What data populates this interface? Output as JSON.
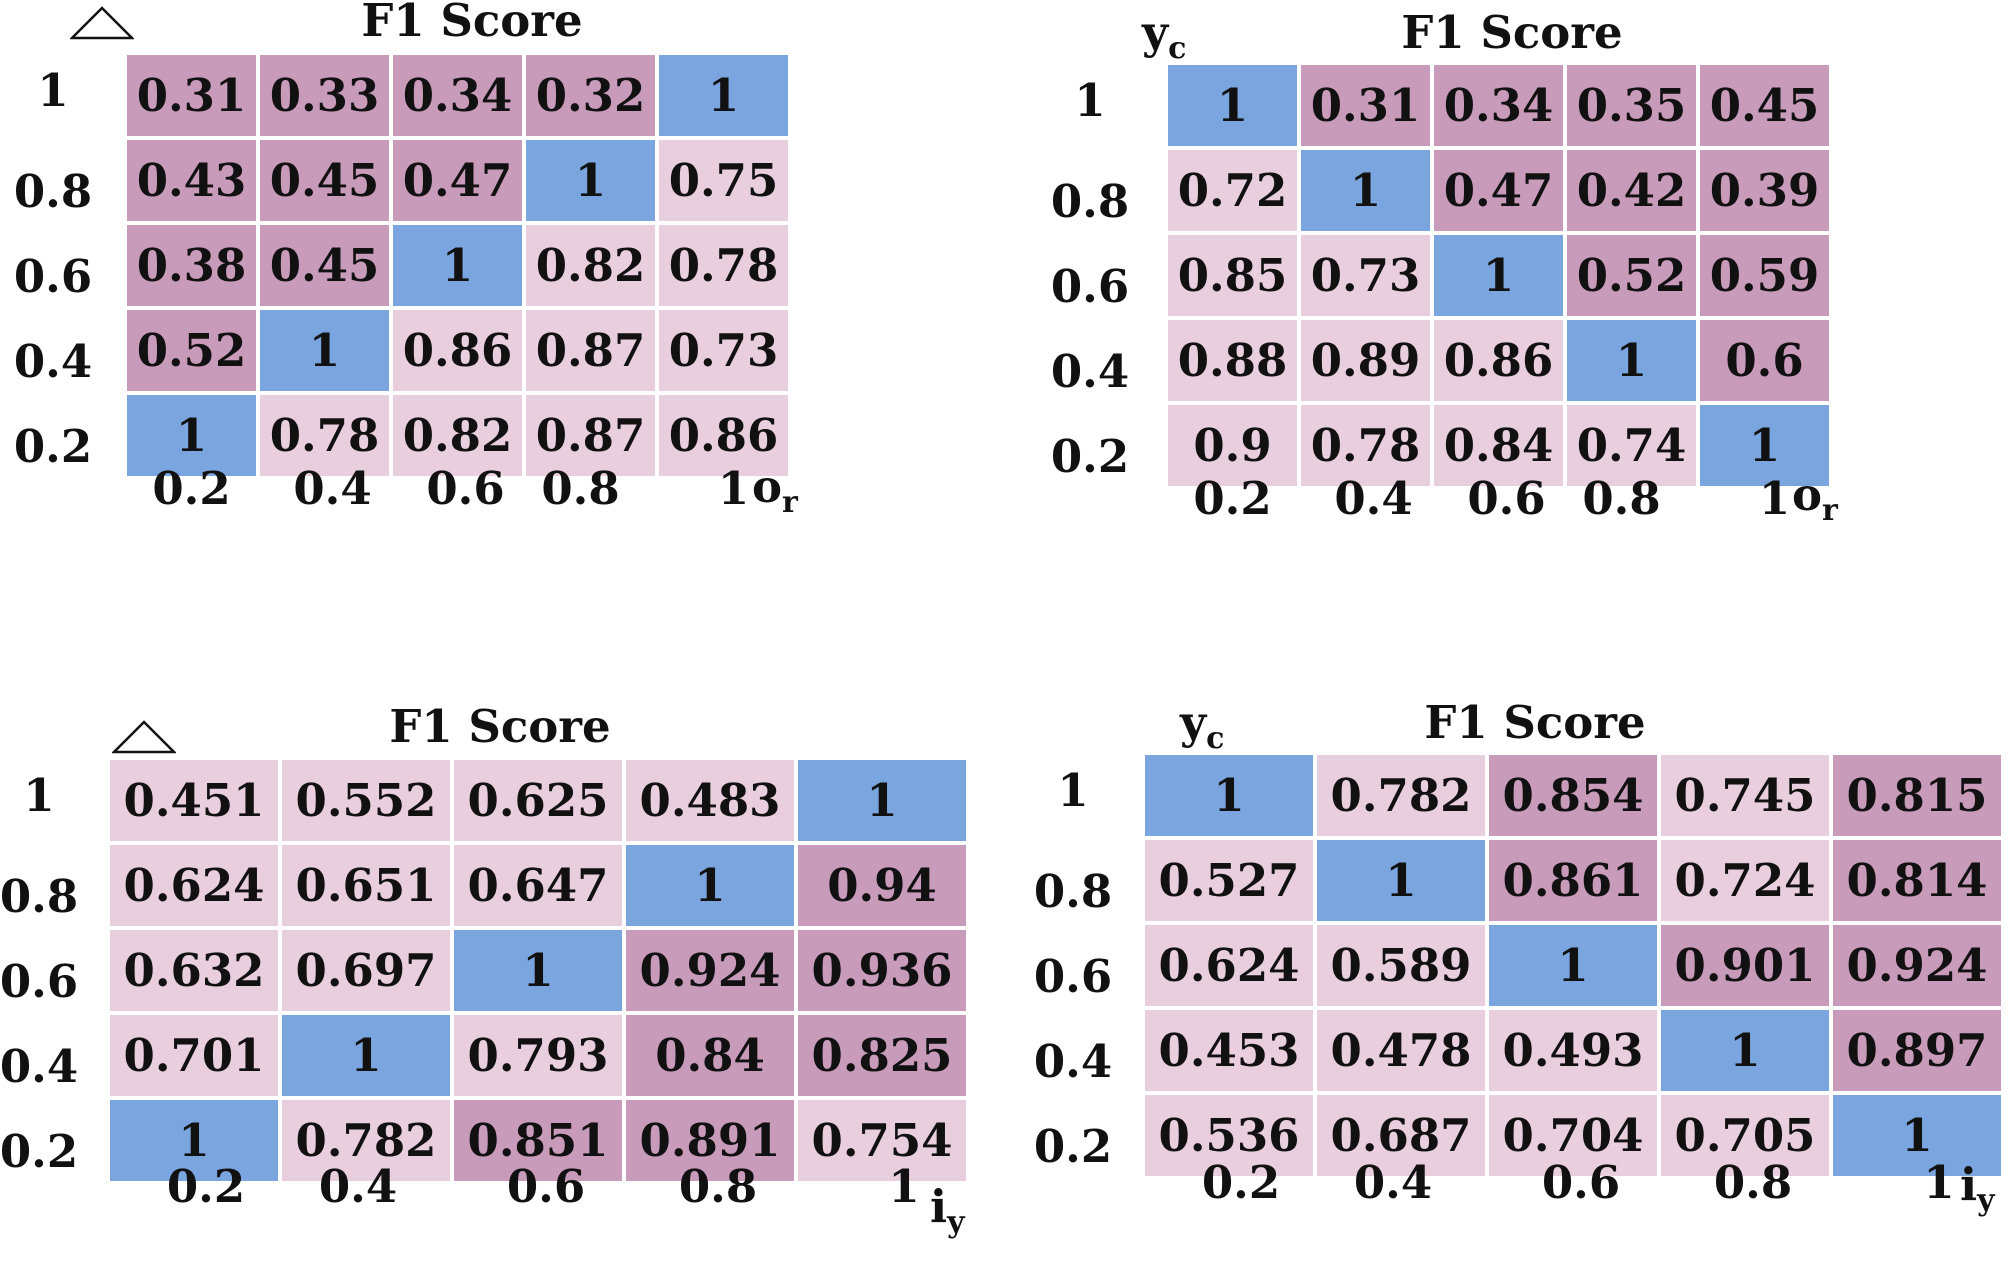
{
  "colors": {
    "high": "#c99bbb",
    "low": "#e9cedd",
    "diag": "#7ba5df",
    "threshold": 0.8
  },
  "chart_data": [
    {
      "type": "heatmap",
      "title": "F1 Score",
      "corner_icon": "triangle-icon",
      "x_name": {
        "base": "o",
        "sub": "r"
      },
      "x_ticks": [
        "0.2",
        "0.4",
        "0.6",
        "0.8",
        "1"
      ],
      "y_ticks": [
        "1",
        "0.8",
        "0.6",
        "0.4",
        "0.2"
      ],
      "values": [
        [
          "0.31",
          "0.33",
          "0.34",
          "0.32",
          "1"
        ],
        [
          "0.43",
          "0.45",
          "0.47",
          "1",
          "0.75"
        ],
        [
          "0.38",
          "0.45",
          "1",
          "0.82",
          "0.78"
        ],
        [
          "0.52",
          "1",
          "0.86",
          "0.87",
          "0.73"
        ],
        [
          "1",
          "0.78",
          "0.82",
          "0.87",
          "0.86"
        ]
      ]
    },
    {
      "type": "heatmap",
      "title": "F1 Score",
      "y_name": {
        "base": "y",
        "sub": "c"
      },
      "x_name": {
        "base": "o",
        "sub": "r"
      },
      "x_ticks": [
        "0.2",
        "0.4",
        "0.6",
        "0.8",
        "1"
      ],
      "y_ticks": [
        "1",
        "0.8",
        "0.6",
        "0.4",
        "0.2"
      ],
      "values": [
        [
          "1",
          "0.31",
          "0.34",
          "0.35",
          "0.45"
        ],
        [
          "0.72",
          "1",
          "0.47",
          "0.42",
          "0.39"
        ],
        [
          "0.85",
          "0.73",
          "1",
          "0.52",
          "0.59"
        ],
        [
          "0.88",
          "0.89",
          "0.86",
          "1",
          "0.6"
        ],
        [
          "0.9",
          "0.78",
          "0.84",
          "0.74",
          "1"
        ]
      ]
    },
    {
      "type": "heatmap",
      "title": "F1 Score",
      "corner_icon": "triangle-icon",
      "x_name": {
        "base": "i",
        "sub": "y"
      },
      "x_ticks": [
        "0.2",
        "0.4",
        "0.6",
        "0.8",
        "1"
      ],
      "y_ticks": [
        "1",
        "0.8",
        "0.6",
        "0.4",
        "0.2"
      ],
      "values": [
        [
          "0.451",
          "0.552",
          "0.625",
          "0.483",
          "1"
        ],
        [
          "0.624",
          "0.651",
          "0.647",
          "1",
          "0.94"
        ],
        [
          "0.632",
          "0.697",
          "1",
          "0.924",
          "0.936"
        ],
        [
          "0.701",
          "1",
          "0.793",
          "0.84",
          "0.825"
        ],
        [
          "1",
          "0.782",
          "0.851",
          "0.891",
          "0.754"
        ]
      ]
    },
    {
      "type": "heatmap",
      "title": "F1 Score",
      "y_name": {
        "base": "y",
        "sub": "c"
      },
      "x_name": {
        "base": "i",
        "sub": "y"
      },
      "x_ticks": [
        "0.2",
        "0.4",
        "0.6",
        "0.8",
        "1"
      ],
      "y_ticks": [
        "1",
        "0.8",
        "0.6",
        "0.4",
        "0.2"
      ],
      "values": [
        [
          "1",
          "0.782",
          "0.854",
          "0.745",
          "0.815"
        ],
        [
          "0.527",
          "1",
          "0.861",
          "0.724",
          "0.814"
        ],
        [
          "0.624",
          "0.589",
          "1",
          "0.901",
          "0.924"
        ],
        [
          "0.453",
          "0.478",
          "0.493",
          "1",
          "0.897"
        ],
        [
          "0.536",
          "0.687",
          "0.704",
          "0.705",
          "1"
        ]
      ]
    }
  ]
}
